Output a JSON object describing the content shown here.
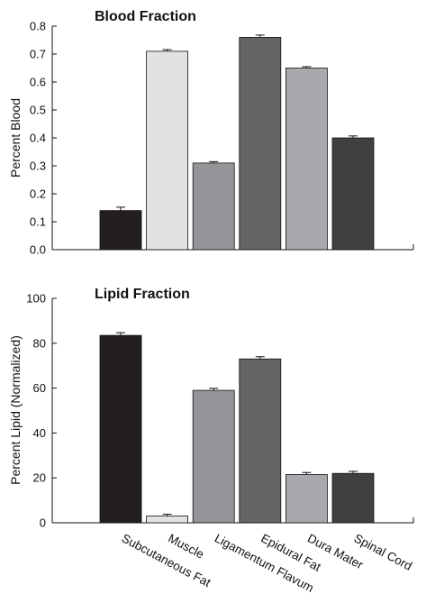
{
  "chart_data": [
    {
      "type": "bar",
      "title": "Blood Fraction",
      "xlabel": "",
      "ylabel": "Percent Blood",
      "ylim": [
        0.0,
        0.8
      ],
      "yticks": [
        "0.0",
        "0.1",
        "0.2",
        "0.3",
        "0.4",
        "0.5",
        "0.6",
        "0.7",
        "0.8"
      ],
      "categories": [
        "Subcutaneous Fat",
        "Muscle",
        "Ligamentum Flavum",
        "Epidural Fat",
        "Dura Mater",
        "Spinal Cord"
      ],
      "values": [
        0.14,
        0.71,
        0.31,
        0.76,
        0.65,
        0.4
      ],
      "errors": [
        0.012,
        0.006,
        0.005,
        0.008,
        0.005,
        0.007
      ],
      "bar_colors": [
        "#231f20",
        "#e1e2e4",
        "#939598",
        "#636466",
        "#a7a9ac",
        "#404042"
      ],
      "grid": false,
      "legend": "none"
    },
    {
      "type": "bar",
      "title": "Lipid Fraction",
      "xlabel": "",
      "ylabel": "Percent Lipid (Normalized)",
      "ylim": [
        0,
        100
      ],
      "yticks": [
        "0",
        "20",
        "40",
        "60",
        "80",
        "100"
      ],
      "categories": [
        "Subcutaneous Fat",
        "Muscle",
        "Ligamentum Flavum",
        "Epidural Fat",
        "Dura Mater",
        "Spinal Cord"
      ],
      "values": [
        83.5,
        3,
        59,
        73,
        21.5,
        22
      ],
      "errors": [
        1.2,
        0.8,
        0.9,
        1.0,
        0.9,
        0.9
      ],
      "bar_colors": [
        "#231f20",
        "#e1e2e4",
        "#939598",
        "#636466",
        "#a7a9ac",
        "#404042"
      ],
      "grid": false,
      "legend": "none"
    }
  ]
}
